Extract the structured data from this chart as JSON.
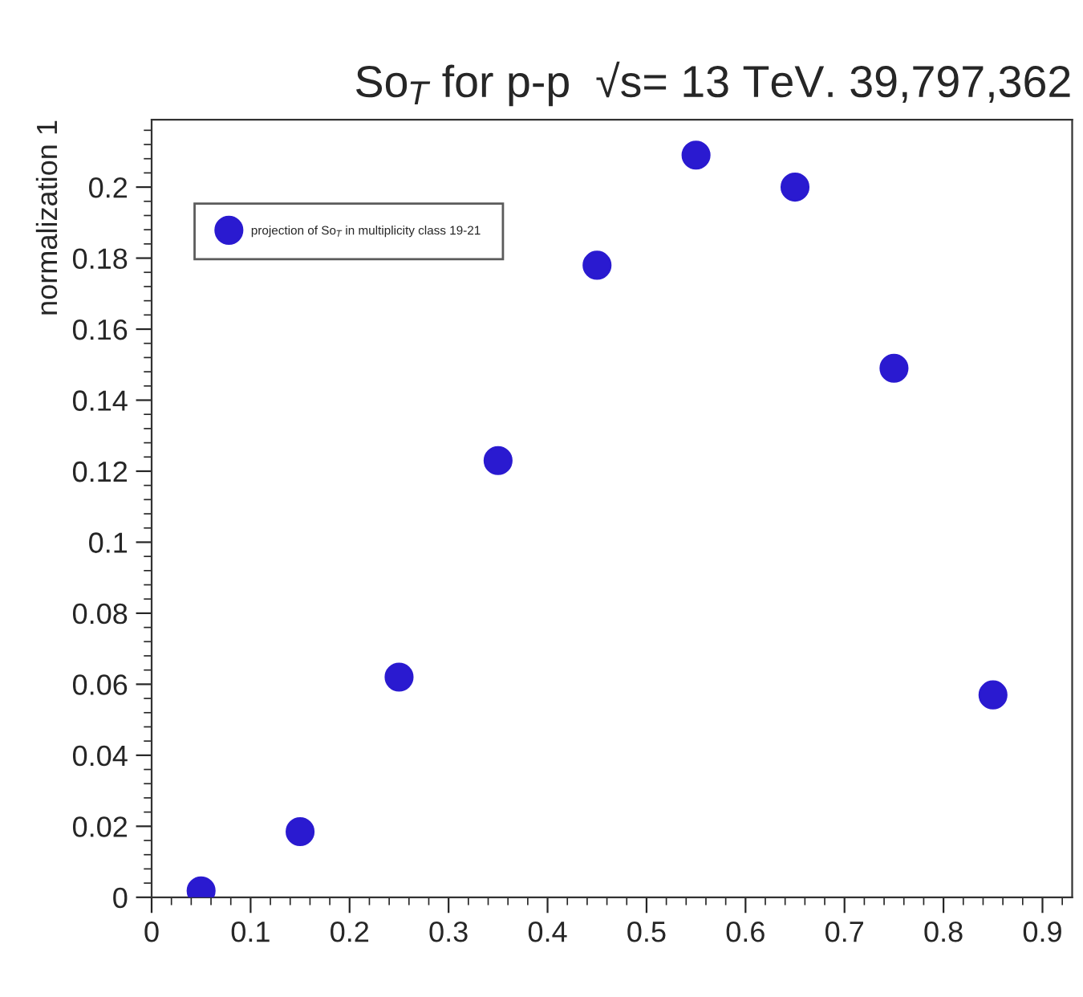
{
  "chart_data": {
    "type": "scatter",
    "title": "So$_{T}$ for p-p  √s= 13 TeV. 39,797,362",
    "ylabel": "normalization 1",
    "x": [
      0.05,
      0.15,
      0.25,
      0.35,
      0.45,
      0.55,
      0.65,
      0.75,
      0.85
    ],
    "series": [
      {
        "name": "projection of So$_{T}$ in multiplicity class 19-21",
        "color": "#2a1ad0",
        "values": [
          0.0018,
          0.0185,
          0.062,
          0.123,
          0.178,
          0.209,
          0.2,
          0.149,
          0.057
        ]
      }
    ],
    "xlim": [
      0,
      0.93
    ],
    "ylim": [
      0,
      0.219
    ],
    "xticks": [
      0,
      0.1,
      0.2,
      0.3,
      0.4,
      0.5,
      0.6,
      0.7,
      0.8,
      0.9
    ],
    "yticks": [
      0,
      0.02,
      0.04,
      0.06,
      0.08,
      0.1,
      0.12,
      0.14,
      0.16,
      0.18,
      0.2
    ],
    "marker": "circle",
    "legend": "top left",
    "grid": false
  }
}
